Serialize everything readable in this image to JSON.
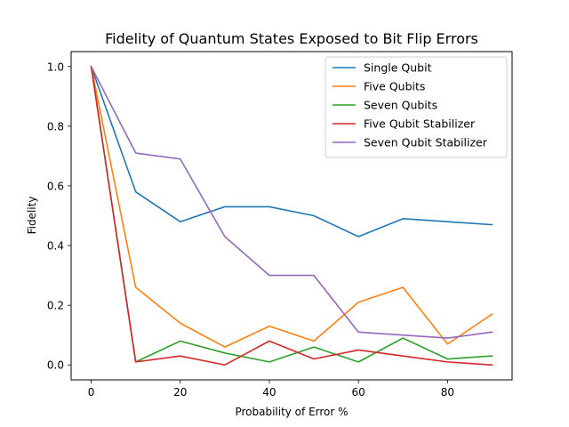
{
  "chart_data": {
    "type": "line",
    "title": "Fidelity of Quantum States Exposed to Bit Flip Errors",
    "xlabel": "Probability of Error %",
    "ylabel": "Fidelity",
    "xlim": [
      -4.5,
      94.5
    ],
    "ylim": [
      -0.05,
      1.05
    ],
    "xticks": [
      0,
      20,
      40,
      60,
      80
    ],
    "yticks": [
      "0.0",
      "0.2",
      "0.4",
      "0.6",
      "0.8",
      "1.0"
    ],
    "grid": false,
    "legend_position": "top-right",
    "x": [
      0,
      10,
      20,
      30,
      40,
      50,
      60,
      70,
      80,
      90
    ],
    "series": [
      {
        "name": "Single Qubit",
        "color": "#1f77b4",
        "values": [
          1.0,
          0.58,
          0.48,
          0.53,
          0.53,
          0.5,
          0.43,
          0.49,
          0.48,
          0.47
        ]
      },
      {
        "name": "Five Qubits",
        "color": "#ff7f0e",
        "values": [
          1.0,
          0.26,
          0.14,
          0.06,
          0.13,
          0.08,
          0.21,
          0.26,
          0.07,
          0.17
        ]
      },
      {
        "name": "Seven Qubits",
        "color": "#2ca02c",
        "values": [
          1.0,
          0.01,
          0.08,
          0.04,
          0.01,
          0.06,
          0.01,
          0.09,
          0.02,
          0.03
        ]
      },
      {
        "name": "Five Qubit Stabilizer",
        "color": "#d62728",
        "values": [
          1.0,
          0.01,
          0.03,
          0.0,
          0.08,
          0.02,
          0.05,
          0.03,
          0.01,
          0.0
        ]
      },
      {
        "name": "Seven Qubit Stabilizer",
        "color": "#9467bd",
        "values": [
          1.0,
          0.71,
          0.69,
          0.43,
          0.3,
          0.3,
          0.11,
          0.1,
          0.09,
          0.11
        ]
      }
    ]
  }
}
